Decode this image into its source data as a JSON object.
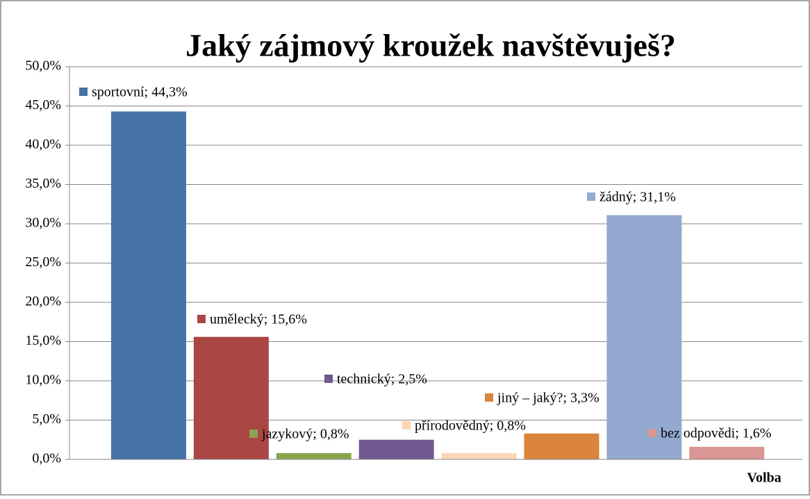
{
  "chart_data": {
    "type": "bar",
    "title": "Jaký zájmový kroužek navštěvuješ?",
    "x_label": "Volba",
    "categories": [
      "sportovní",
      "umělecký",
      "jazykový",
      "technický",
      "přírodovědný",
      "jiný – jaký?",
      "žádný",
      "bez odpovědi"
    ],
    "values": [
      44.3,
      15.6,
      0.8,
      2.5,
      0.8,
      3.3,
      31.1,
      1.6
    ],
    "value_labels": [
      "sportovní; 44,3%",
      "umělecký; 15,6%",
      "jazykový; 0,8%",
      "technický; 2,5%",
      "přírodovědný; 0,8%",
      "jiný – jaký?; 3,3%",
      "žádný; 31,1%",
      "bez odpovědi; 1,6%"
    ],
    "colors": [
      "#4572a7",
      "#aa4643",
      "#89a54e",
      "#71588f",
      "#fcd5b5",
      "#db843d",
      "#93a9cf",
      "#d99694"
    ],
    "ylim": [
      0,
      50
    ],
    "yticks": [
      {
        "value": 0,
        "label": "0,0%"
      },
      {
        "value": 5,
        "label": "5,0%"
      },
      {
        "value": 10,
        "label": "10,0%"
      },
      {
        "value": 15,
        "label": "15,0%"
      },
      {
        "value": 20,
        "label": "20,0%"
      },
      {
        "value": 25,
        "label": "25,0%"
      },
      {
        "value": 30,
        "label": "30,0%"
      },
      {
        "value": 35,
        "label": "35,0%"
      },
      {
        "value": 40,
        "label": "40,0%"
      },
      {
        "value": 45,
        "label": "45,0%"
      },
      {
        "value": 50,
        "label": "50,0%"
      }
    ],
    "grid": true
  }
}
